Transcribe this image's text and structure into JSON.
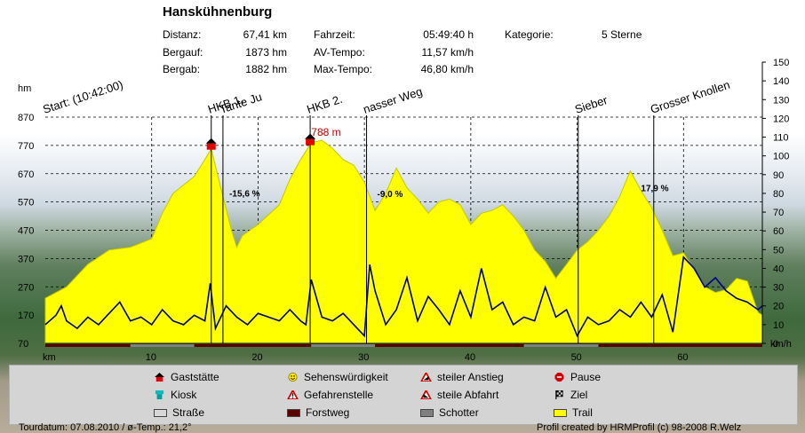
{
  "header": {
    "title": "Hanskühnenburg",
    "stats": [
      {
        "label": "Distanz:",
        "value": "67,41 km"
      },
      {
        "label": "Bergauf:",
        "value": "1873 hm"
      },
      {
        "label": "Bergab:",
        "value": "1882 hm"
      }
    ],
    "stats2": [
      {
        "label": "Fahrzeit:",
        "value": "05:49:40 h"
      },
      {
        "label": "AV-Tempo:",
        "value": "11,57 km/h"
      },
      {
        "label": "Max-Tempo:",
        "value": "46,80 km/h"
      }
    ],
    "category_label": "Kategorie:",
    "category_value": "5 Sterne"
  },
  "legend": [
    {
      "label": "Gaststätte",
      "icon": "restaurant-icon"
    },
    {
      "label": "Sehenswürdigkeit",
      "icon": "smiley-icon"
    },
    {
      "label": "steiler Anstieg",
      "icon": "warning-climb-icon"
    },
    {
      "label": "Pause",
      "icon": "stop-sign-icon"
    },
    {
      "label": "Kiosk",
      "icon": "kiosk-icon"
    },
    {
      "label": "Gefahrenstelle",
      "icon": "warning-icon"
    },
    {
      "label": "steile Abfahrt",
      "icon": "warning-descent-icon"
    },
    {
      "label": "Ziel",
      "icon": "finish-flag-icon"
    },
    {
      "label": "Straße",
      "icon": "road-swatch",
      "color": "#d8d8d8"
    },
    {
      "label": "Forstweg",
      "icon": "forest-path-swatch",
      "color": "#5a0000"
    },
    {
      "label": "Schotter",
      "icon": "gravel-swatch",
      "color": "#808080"
    },
    {
      "label": "Trail",
      "icon": "trail-swatch",
      "color": "#ffff00"
    }
  ],
  "footer": {
    "left": "Tourdatum: 07.08.2010  /  ø-Temp.: 21,2°",
    "right": "Profil created by HRMProfil (c) 98-2008 R.Welz"
  },
  "chart_data": {
    "type": "area",
    "title": "Hanskühnenburg",
    "xlabel": "km",
    "ylabel": "hm",
    "y2label": "km/h",
    "xlim": [
      0,
      67.41
    ],
    "ylim": [
      70,
      870
    ],
    "y2lim": [
      0,
      150
    ],
    "x_ticks": [
      10,
      20,
      30,
      40,
      50,
      60
    ],
    "y_ticks": [
      70,
      170,
      270,
      370,
      470,
      570,
      670,
      770,
      870
    ],
    "y2_ticks": [
      0,
      10,
      20,
      30,
      40,
      50,
      60,
      70,
      80,
      90,
      100,
      110,
      120,
      130,
      140,
      150
    ],
    "grid": true,
    "colors": {
      "elevation": "#ffff00",
      "speed": "#000080",
      "marker": "#000000",
      "grid": "#000000"
    },
    "elevation": {
      "x": [
        0,
        2,
        4,
        6,
        8,
        10,
        11,
        12,
        13,
        14,
        15,
        15.6,
        16.5,
        17.5,
        18,
        18.5,
        20,
        22,
        23,
        24,
        25,
        26,
        27,
        28,
        29,
        30,
        31,
        32,
        33,
        34,
        35,
        36,
        37,
        38,
        39,
        40,
        41,
        42,
        43,
        44,
        45,
        46,
        47,
        48,
        49,
        50,
        51,
        52,
        53,
        54,
        55,
        56,
        57,
        58,
        59,
        60,
        61,
        62,
        63,
        64,
        65,
        66,
        67,
        67.41
      ],
      "y": [
        230,
        270,
        350,
        400,
        410,
        440,
        530,
        600,
        630,
        660,
        720,
        758,
        620,
        470,
        410,
        450,
        490,
        560,
        650,
        720,
        780,
        788,
        760,
        720,
        700,
        640,
        540,
        600,
        690,
        620,
        580,
        530,
        570,
        580,
        560,
        490,
        530,
        540,
        560,
        520,
        470,
        400,
        360,
        300,
        350,
        400,
        430,
        470,
        520,
        590,
        680,
        610,
        550,
        470,
        380,
        390,
        330,
        270,
        250,
        260,
        300,
        290,
        180,
        170
      ]
    },
    "speed": {
      "x": [
        0,
        1,
        1.5,
        2,
        3,
        4,
        5,
        6,
        7,
        8,
        9,
        10,
        11,
        12,
        13,
        14,
        15,
        15.5,
        16,
        17,
        18,
        19,
        20,
        21,
        22,
        23,
        24,
        24.5,
        25,
        26,
        27,
        28,
        29,
        30,
        30.5,
        31,
        32,
        33,
        34,
        35,
        36,
        37,
        38,
        39,
        40,
        41,
        42,
        43,
        44,
        45,
        46,
        47,
        48,
        49,
        50,
        51,
        52,
        53,
        54,
        55,
        56,
        57,
        58,
        59,
        60,
        61,
        62,
        63,
        64,
        65,
        66,
        67,
        67.41
      ],
      "y": [
        10,
        15,
        20,
        12,
        8,
        14,
        10,
        16,
        22,
        12,
        14,
        10,
        18,
        12,
        10,
        15,
        12,
        32,
        8,
        20,
        14,
        10,
        16,
        14,
        12,
        18,
        12,
        10,
        34,
        14,
        12,
        16,
        10,
        4,
        42,
        28,
        10,
        18,
        35,
        12,
        25,
        18,
        10,
        28,
        14,
        40,
        18,
        22,
        10,
        14,
        12,
        30,
        14,
        18,
        4,
        14,
        10,
        12,
        18,
        14,
        22,
        14,
        26,
        6,
        46,
        40,
        30,
        35,
        28,
        24,
        22,
        18,
        20
      ]
    },
    "elevation_marker": {
      "x": 25.5,
      "y": 788,
      "label": "788 m"
    },
    "grade_labels": [
      {
        "x": 17.3,
        "y": 590,
        "text": "-15,6 %"
      },
      {
        "x": 31.2,
        "y": 588,
        "text": "-9,0 %"
      },
      {
        "x": 56.0,
        "y": 608,
        "text": "17,9 %"
      }
    ],
    "waypoints": [
      {
        "x": 0,
        "label": "Start: (10:42:00)",
        "line": false,
        "icon": "none"
      },
      {
        "x": 15.6,
        "label": "HKB 1.",
        "line": true,
        "icon": "restaurant-icon"
      },
      {
        "x": 16.7,
        "label": "Tante Ju",
        "line": true,
        "icon": "none"
      },
      {
        "x": 24.9,
        "label": "HKB 2.",
        "line": true,
        "icon": "restaurant-icon"
      },
      {
        "x": 30.2,
        "label": "nasser Weg",
        "line": true,
        "icon": "none"
      },
      {
        "x": 50.1,
        "label": "Sieber",
        "line": true,
        "icon": "none"
      },
      {
        "x": 57.2,
        "label": "Grosser Knollen",
        "line": true,
        "icon": "none"
      }
    ],
    "surface_bar": [
      {
        "from": 0,
        "to": 8,
        "surface": "Forstweg"
      },
      {
        "from": 8,
        "to": 14,
        "surface": "Schotter"
      },
      {
        "from": 14,
        "to": 25,
        "surface": "Forstweg"
      },
      {
        "from": 25,
        "to": 31,
        "surface": "Schotter"
      },
      {
        "from": 31,
        "to": 45,
        "surface": "Forstweg"
      },
      {
        "from": 45,
        "to": 52,
        "surface": "Schotter"
      },
      {
        "from": 52,
        "to": 67.41,
        "surface": "Forstweg"
      }
    ]
  }
}
